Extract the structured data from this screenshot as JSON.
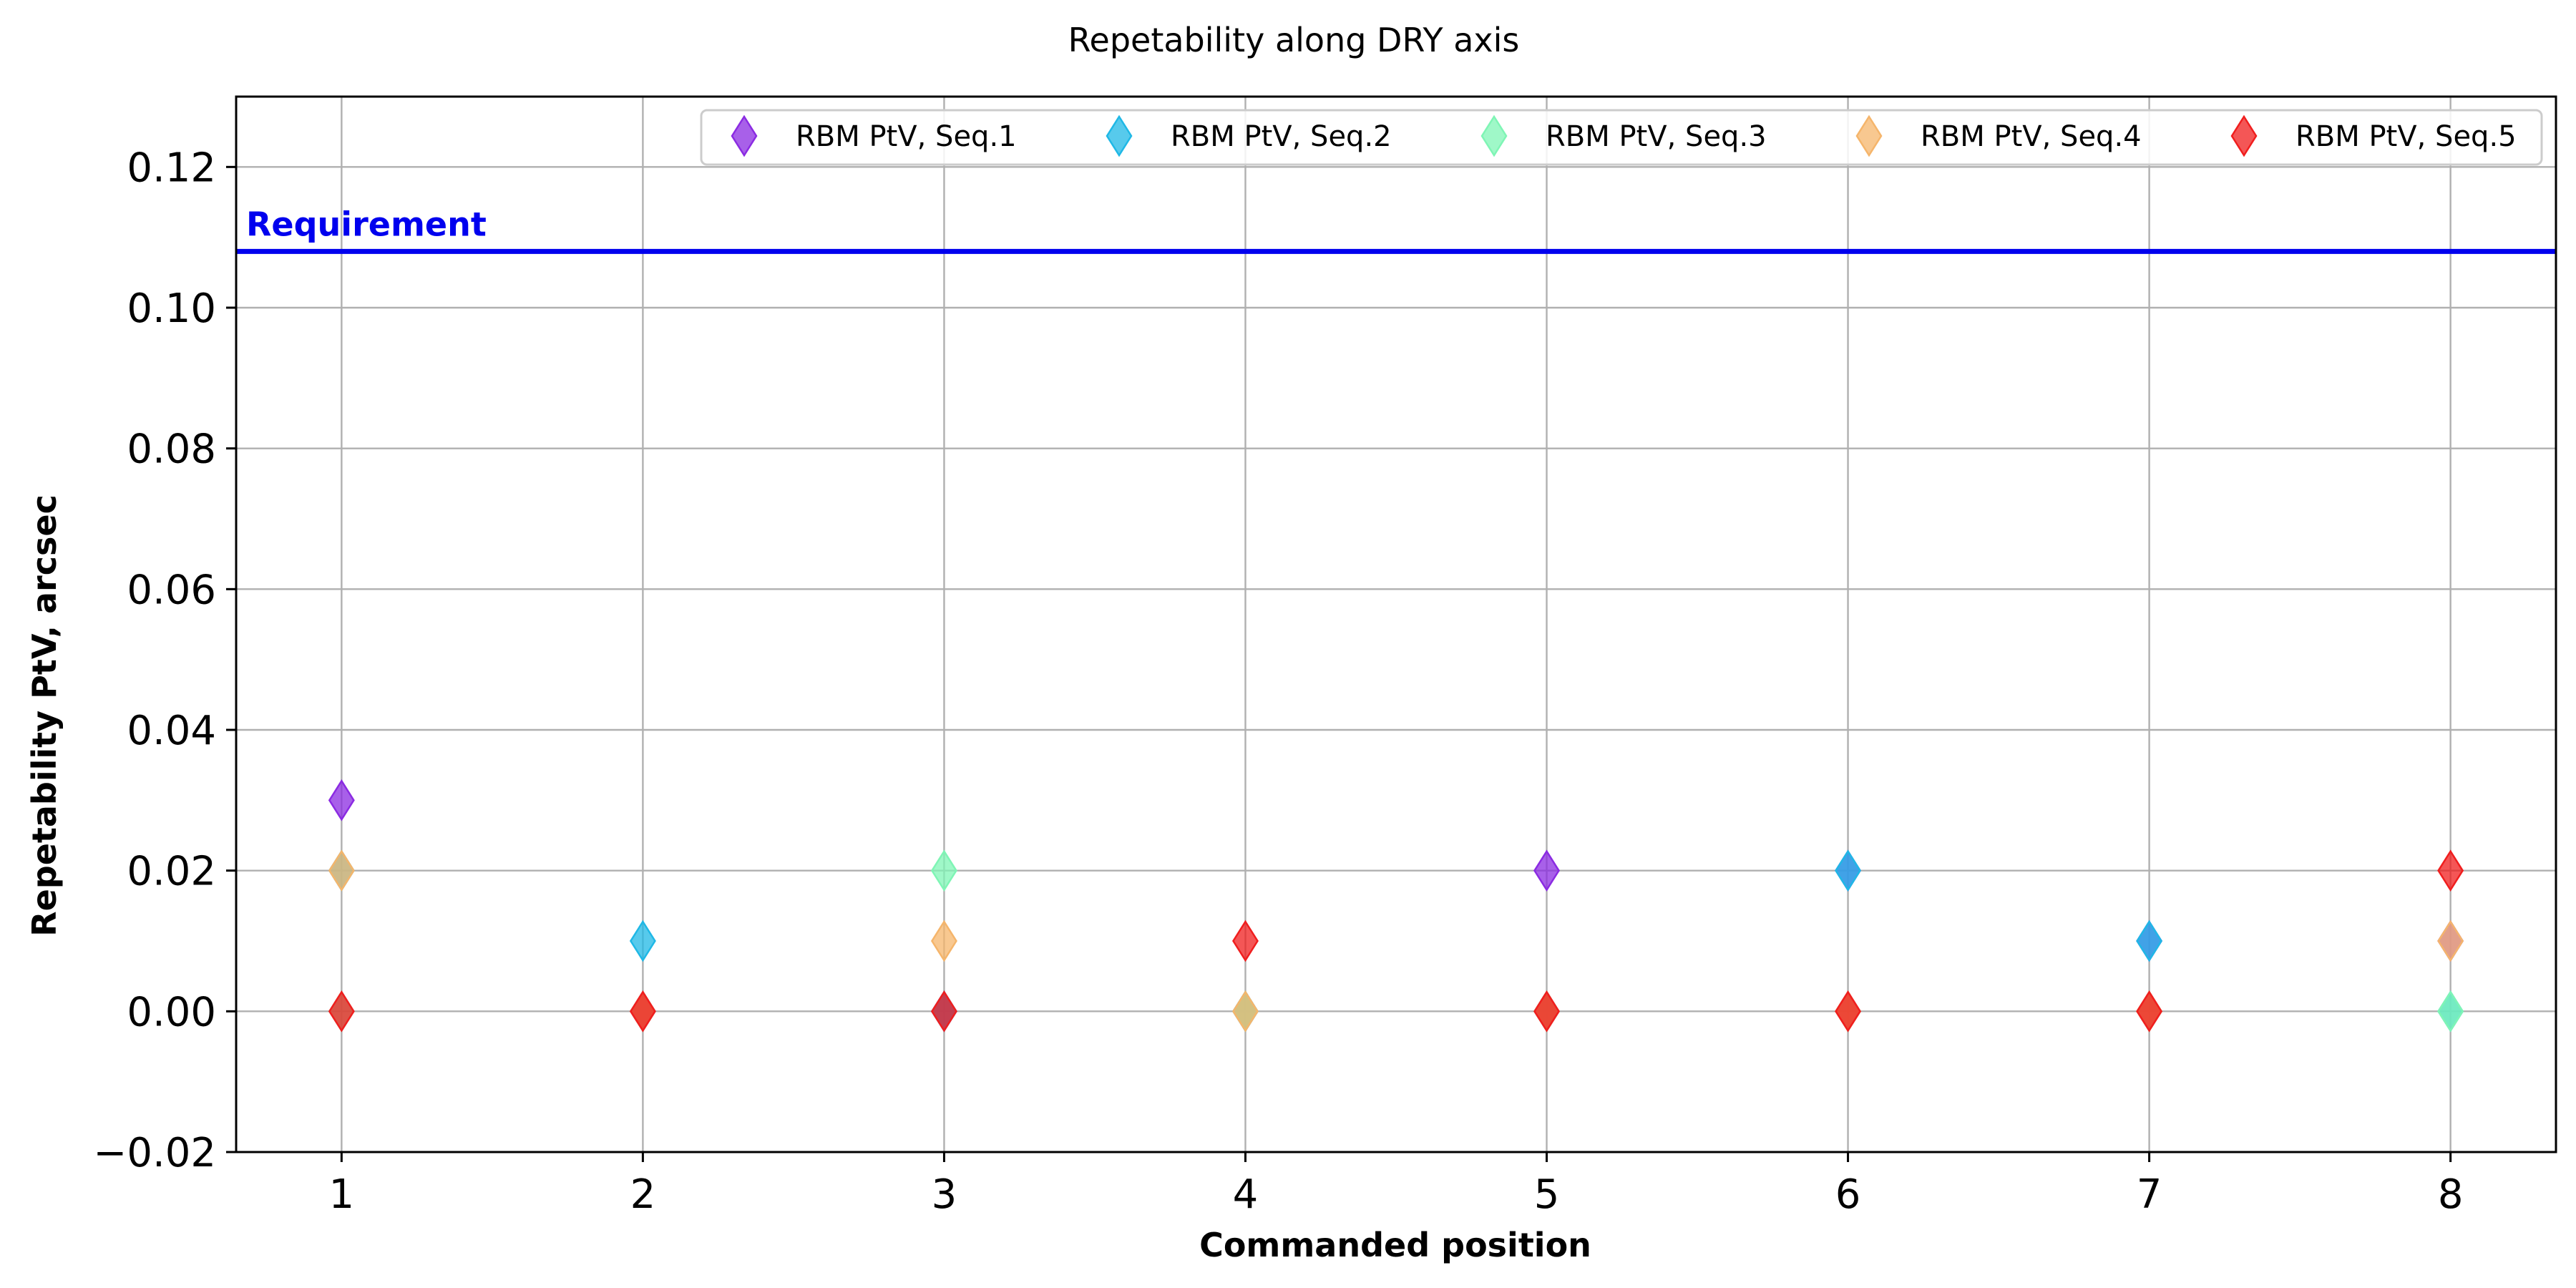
{
  "chart_data": {
    "type": "scatter",
    "title": "Repetability along DRY axis",
    "xlabel": "Commanded position",
    "ylabel": "Repetability PtV, arcsec",
    "xlim": [
      0.65,
      8.35
    ],
    "ylim": [
      -0.02,
      0.13
    ],
    "x_ticks": [
      1,
      2,
      3,
      4,
      5,
      6,
      7,
      8
    ],
    "y_ticks": [
      -0.02,
      0.0,
      0.02,
      0.04,
      0.06,
      0.08,
      0.1,
      0.12
    ],
    "y_tick_labels": [
      "−0.02",
      "0.00",
      "0.02",
      "0.04",
      "0.06",
      "0.08",
      "0.10",
      "0.12"
    ],
    "grid": true,
    "legend_position": "top-right",
    "marker": "thin-diamond",
    "requirement": {
      "label": "Requirement",
      "value": 0.108,
      "color": "#0000ee"
    },
    "x": [
      1,
      2,
      3,
      4,
      5,
      6,
      7,
      8
    ],
    "series": [
      {
        "name": "RBM PtV, Seq.1",
        "color": "#8b2be2",
        "values": [
          0.03,
          0.0,
          0.0,
          0.0,
          0.02,
          0.02,
          0.01,
          0.01
        ]
      },
      {
        "name": "RBM PtV, Seq.2",
        "color": "#1fb8e6",
        "values": [
          0.02,
          0.01,
          0.0,
          0.0,
          0.0,
          0.02,
          0.01,
          0.0
        ]
      },
      {
        "name": "RBM PtV, Seq.3",
        "color": "#7ff5b5",
        "values": [
          0.0,
          0.0,
          0.02,
          0.0,
          0.0,
          0.0,
          0.0,
          0.0
        ]
      },
      {
        "name": "RBM PtV, Seq.4",
        "color": "#f5b56b",
        "values": [
          0.02,
          0.0,
          0.01,
          0.0,
          0.0,
          0.0,
          0.0,
          0.01
        ]
      },
      {
        "name": "RBM PtV, Seq.5",
        "color": "#f01e1e",
        "values": [
          0.0,
          0.0,
          0.0,
          0.01,
          0.0,
          0.0,
          0.0,
          0.02
        ]
      }
    ]
  }
}
